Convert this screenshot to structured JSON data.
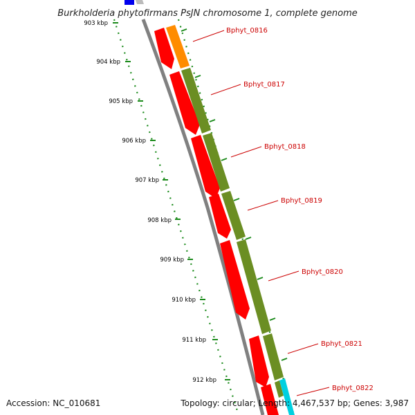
{
  "title": "Burkholderia phytofirmans PsJN chromosome 1, complete genome",
  "footer": {
    "accession": "Accession: NC_010681",
    "summary": "Topology: circular; Length: 4,467,537 bp; Genes: 3,987"
  },
  "ticks": [
    "903 kbp",
    "904 kbp",
    "905 kbp",
    "906 kbp",
    "907 kbp",
    "908 kbp",
    "909 kbp",
    "910 kbp",
    "911 kbp",
    "912 kbp"
  ],
  "genes": [
    "Bphyt_0816",
    "Bphyt_0817",
    "Bphyt_0818",
    "Bphyt_0819",
    "Bphyt_0820",
    "Bphyt_0821",
    "Bphyt_0822"
  ],
  "colors": {
    "cds": "#ff0000",
    "gene_olive": "#6b8e23",
    "gene_orange": "#ff8c00",
    "gene_cyan": "#00d0e0",
    "backbone": "#888888",
    "tick_green": "#1a8a1a",
    "label_red": "#cc0000",
    "blue_feature": "#0000ee"
  }
}
